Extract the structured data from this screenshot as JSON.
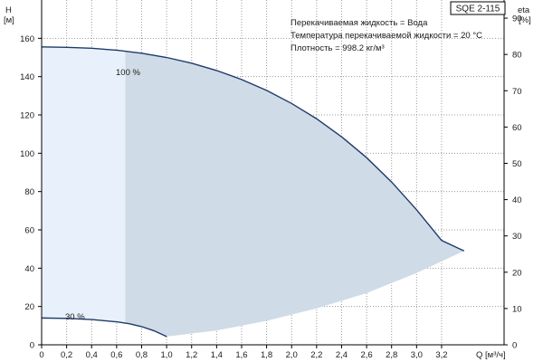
{
  "chart_data": {
    "type": "area",
    "title": "SQE 2-115",
    "info_lines": [
      "Перекачиваемая жидкость = Вода",
      "Температура перекачиваемой жидкости = 20 °C",
      "Плотность = 998.2 кг/м³"
    ],
    "x_axis": {
      "label": "Q [м³/ч]",
      "range": [
        0,
        3.7
      ],
      "ticks": [
        "0",
        "0,2",
        "0,4",
        "0,6",
        "0,8",
        "1,0",
        "1,2",
        "1,4",
        "1,6",
        "1,8",
        "2,0",
        "2,2",
        "2,4",
        "2,6",
        "2,8",
        "3,0",
        "3,2"
      ],
      "tick_values": [
        0,
        0.2,
        0.4,
        0.6,
        0.8,
        1.0,
        1.2,
        1.4,
        1.6,
        1.8,
        2.0,
        2.2,
        2.4,
        2.6,
        2.8,
        3.0,
        3.2
      ]
    },
    "y_left": {
      "label_top": "H",
      "label_unit": "[м]",
      "range": [
        0,
        180
      ],
      "ticks": [
        0,
        20,
        40,
        60,
        80,
        100,
        120,
        140,
        160
      ]
    },
    "y_right": {
      "label_top": "eta",
      "label_unit": "[%]",
      "range": [
        0,
        95
      ],
      "ticks": [
        0,
        10,
        20,
        30,
        40,
        50,
        60,
        70,
        80,
        90
      ]
    },
    "grid": true,
    "series": [
      {
        "name": "100 %",
        "axis": "left",
        "x": [
          0,
          0.2,
          0.4,
          0.6,
          0.8,
          1.0,
          1.2,
          1.4,
          1.6,
          1.8,
          2.0,
          2.2,
          2.4,
          2.6,
          2.8,
          3.0,
          3.2,
          3.38
        ],
        "y": [
          155.5,
          155.3,
          154.8,
          153.8,
          152.2,
          150.0,
          147.0,
          143.2,
          138.5,
          132.8,
          126.0,
          118.0,
          108.6,
          97.7,
          85.0,
          70.5,
          54.5,
          49.0
        ]
      },
      {
        "name": "30 %",
        "axis": "left",
        "x": [
          0,
          0.2,
          0.4,
          0.6,
          0.7,
          0.8,
          0.9,
          1.0
        ],
        "y": [
          14.0,
          13.8,
          13.2,
          12.0,
          11.0,
          9.5,
          7.3,
          4.3
        ]
      }
    ],
    "operating_range_lower": {
      "x": [
        1.0,
        1.4,
        1.8,
        2.2,
        2.6,
        3.0,
        3.38
      ],
      "y": [
        4.3,
        7.5,
        12.5,
        19.0,
        27.0,
        37.5,
        49.0
      ]
    },
    "light_region_x_max": 0.67,
    "curve_labels": [
      "100 %",
      "30 %"
    ],
    "colors": {
      "curve": "#1f3a6b",
      "operating_area": "#cfdbe6",
      "light_area": "#e8f1fb"
    }
  }
}
